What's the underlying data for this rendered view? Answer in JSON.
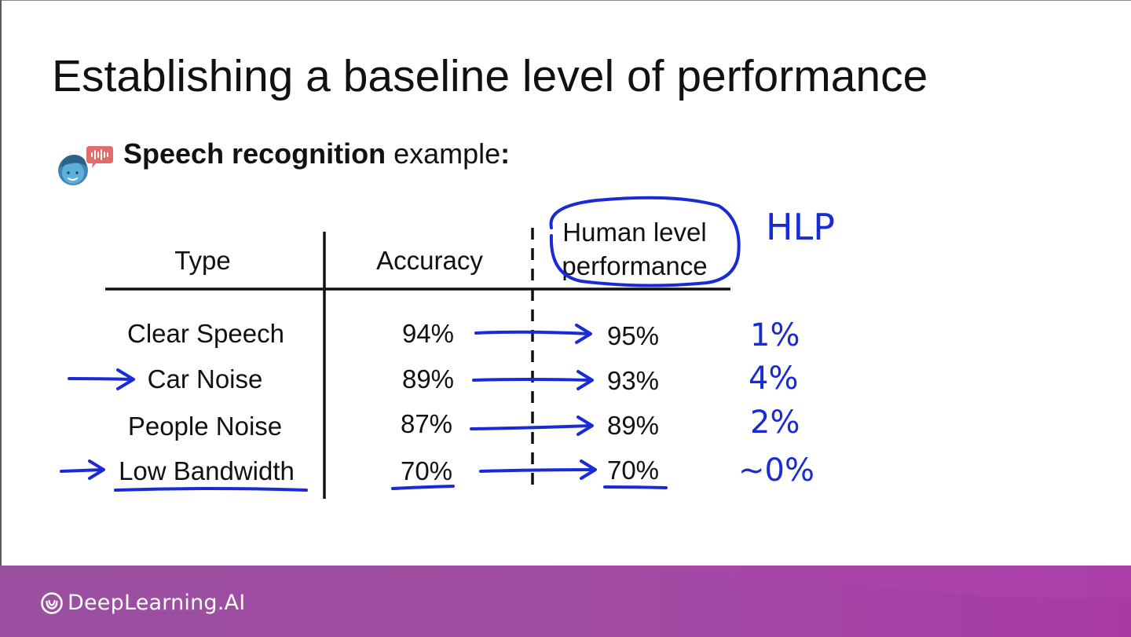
{
  "slide": {
    "title": "Establishing a baseline level of performance",
    "subtitle_bold": "Speech recognition",
    "subtitle_rest": " example",
    "subtitle_colon": ":"
  },
  "table": {
    "headers": {
      "type": "Type",
      "accuracy": "Accuracy",
      "hlp_line1": "Human level",
      "hlp_line2": "performance"
    },
    "rows": [
      {
        "type": "Clear Speech",
        "accuracy": "94%",
        "hlp": "95%",
        "gap": "1%"
      },
      {
        "type": "Car Noise",
        "accuracy": "89%",
        "hlp": "93%",
        "gap": "4%"
      },
      {
        "type": "People Noise",
        "accuracy": "87%",
        "hlp": "89%",
        "gap": "2%"
      },
      {
        "type": "Low Bandwidth",
        "accuracy": "70%",
        "hlp": "70%",
        "gap": "~0%"
      }
    ]
  },
  "annotations": {
    "hlp_label": "HLP",
    "ink_color": "#1a2bd6"
  },
  "icons": {
    "speaker": "speaking-person-icon",
    "brand": "deeplearning-logo-icon"
  },
  "footer": {
    "brand": "DeepLearning.AI",
    "gradient_start": "#9a4fa0",
    "gradient_end": "#a83aa6"
  }
}
